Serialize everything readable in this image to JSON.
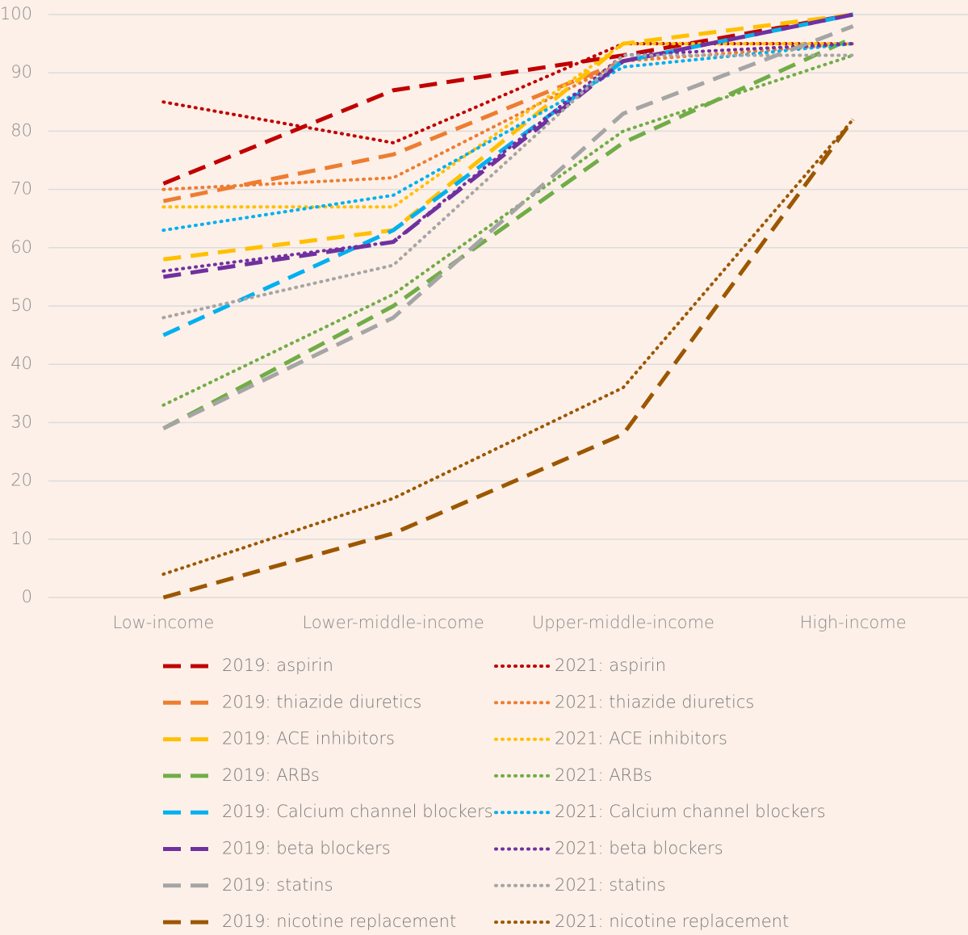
{
  "chart_data": {
    "type": "line",
    "categories": [
      "Low-income",
      "Lower-middle-income",
      "Upper-middle-income",
      "High-income"
    ],
    "ylim": [
      0,
      100
    ],
    "yticks": [
      0,
      10,
      20,
      30,
      40,
      50,
      60,
      70,
      80,
      90,
      100
    ],
    "grid": true,
    "series": [
      {
        "name": "2019: aspirin",
        "color": "#c00000",
        "style": "dashed",
        "values": [
          71,
          87,
          93,
          100
        ]
      },
      {
        "name": "2021: aspirin",
        "color": "#c00000",
        "style": "dotted",
        "values": [
          85,
          78,
          95,
          95
        ]
      },
      {
        "name": "2019: thiazide diuretics",
        "color": "#ed7d31",
        "style": "dashed",
        "values": [
          68,
          76,
          92,
          100
        ]
      },
      {
        "name": "2021: thiazide diuretics",
        "color": "#ed7d31",
        "style": "dotted",
        "values": [
          70,
          72,
          92,
          95
        ]
      },
      {
        "name": "2019: ACE inhibitors",
        "color": "#ffc000",
        "style": "dashed",
        "values": [
          58,
          63,
          95,
          100
        ]
      },
      {
        "name": "2021: ACE inhibitors",
        "color": "#ffc000",
        "style": "dotted",
        "values": [
          67,
          67,
          95,
          95
        ]
      },
      {
        "name": "2019: ARBs",
        "color": "#70ad47",
        "style": "dashed",
        "values": [
          29,
          50,
          78,
          96
        ]
      },
      {
        "name": "2021: ARBs",
        "color": "#70ad47",
        "style": "dotted",
        "values": [
          33,
          52,
          80,
          93
        ]
      },
      {
        "name": "2019: Calcium channel blockers",
        "color": "#00b0f0",
        "style": "dashed",
        "values": [
          45,
          63,
          92,
          100
        ]
      },
      {
        "name": "2021: Calcium channel blockers",
        "color": "#00b0f0",
        "style": "dotted",
        "values": [
          63,
          69,
          91,
          95
        ]
      },
      {
        "name": "2019: beta blockers",
        "color": "#7030a0",
        "style": "dashed",
        "values": [
          55,
          61,
          92,
          100
        ]
      },
      {
        "name": "2021: beta blockers",
        "color": "#7030a0",
        "style": "dotted",
        "values": [
          56,
          61,
          93,
          95
        ]
      },
      {
        "name": "2019: statins",
        "color": "#a5a5a5",
        "style": "dashed",
        "values": [
          29,
          48,
          83,
          98
        ]
      },
      {
        "name": "2021: statins",
        "color": "#a5a5a5",
        "style": "dotted",
        "values": [
          48,
          57,
          93,
          93
        ]
      },
      {
        "name": "2019: nicotine replacement",
        "color": "#9c5700",
        "style": "dashed",
        "values": [
          0,
          11,
          28,
          82
        ]
      },
      {
        "name": "2021: nicotine replacement",
        "color": "#9c5700",
        "style": "dotted",
        "values": [
          4,
          17,
          36,
          82
        ]
      }
    ]
  }
}
